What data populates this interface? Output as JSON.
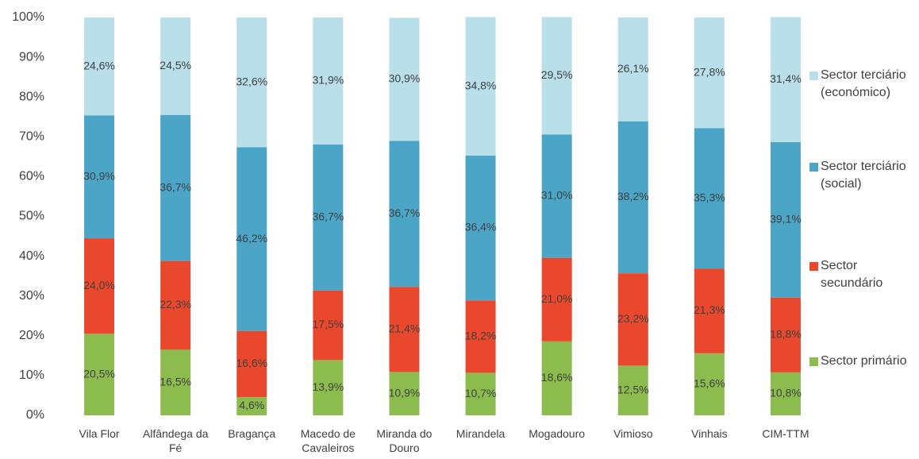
{
  "chart_data": {
    "type": "stacked_bar",
    "categories": [
      "Vila Flor",
      "Alfândega da Fé",
      "Bragança",
      "Macedo de Cavaleiros",
      "Miranda do Douro",
      "Mirandela",
      "Mogadouro",
      "Vimioso",
      "Vinhais",
      "CIM-TTM"
    ],
    "series": [
      {
        "name": "Sector primário",
        "color": "#8cbb4e",
        "values": [
          20.5,
          16.5,
          4.6,
          13.9,
          10.9,
          10.7,
          18.6,
          12.5,
          15.6,
          10.8
        ],
        "value_labels": [
          "20,5%",
          "16,5%",
          "4,6%",
          "13,9%",
          "10,9%",
          "10,7%",
          "18,6%",
          "12,5%",
          "15,6%",
          "10,8%"
        ]
      },
      {
        "name": "Sector secundário",
        "color": "#e9482c",
        "values": [
          24.0,
          22.3,
          16.6,
          17.5,
          21.4,
          18.2,
          21.0,
          23.2,
          21.3,
          18.8
        ],
        "value_labels": [
          "24,0%",
          "22,3%",
          "16,6%",
          "17,5%",
          "21,4%",
          "18,2%",
          "21,0%",
          "23,2%",
          "21,3%",
          "18,8%"
        ]
      },
      {
        "name": "Sector terciário (social)",
        "color": "#4ba5c6",
        "values": [
          30.9,
          36.7,
          46.2,
          36.7,
          36.7,
          36.4,
          31.0,
          38.2,
          35.3,
          39.1
        ],
        "value_labels": [
          "30,9%",
          "36,7%",
          "46,2%",
          "36,7%",
          "36,7%",
          "36,4%",
          "31,0%",
          "38,2%",
          "35,3%",
          "39,1%"
        ]
      },
      {
        "name": "Sector terciário (económico)",
        "color": "#b8dfea",
        "values": [
          24.6,
          24.5,
          32.6,
          31.9,
          30.9,
          34.8,
          29.5,
          26.1,
          27.8,
          31.4
        ],
        "value_labels": [
          "24,6%",
          "24,5%",
          "32,6%",
          "31,9%",
          "30,9%",
          "34,8%",
          "29,5%",
          "26,1%",
          "27,8%",
          "31,4%"
        ]
      }
    ],
    "ylim": [
      0,
      100
    ],
    "yticks": [
      {
        "value": 0,
        "label": "0%"
      },
      {
        "value": 10,
        "label": "10%"
      },
      {
        "value": 20,
        "label": "20%"
      },
      {
        "value": 30,
        "label": "30%"
      },
      {
        "value": 40,
        "label": "40%"
      },
      {
        "value": 50,
        "label": "50%"
      },
      {
        "value": 60,
        "label": "60%"
      },
      {
        "value": 70,
        "label": "70%"
      },
      {
        "value": 80,
        "label": "80%"
      },
      {
        "value": 90,
        "label": "90%"
      },
      {
        "value": 100,
        "label": "100%"
      }
    ],
    "legend": "right"
  }
}
